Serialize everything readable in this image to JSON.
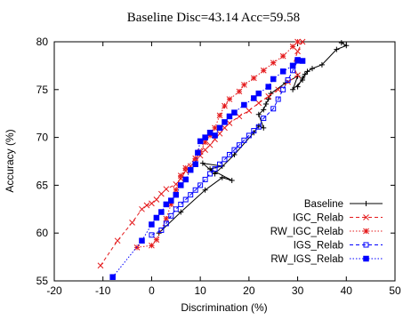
{
  "chart_data": {
    "type": "scatter",
    "title": "Baseline Disc=43.14 Acc=59.58",
    "xlabel": "Discrimination (%)",
    "ylabel": "Accuracy (%)",
    "xlim": [
      -20,
      50
    ],
    "ylim": [
      55,
      80
    ],
    "xticks": [
      -20,
      -10,
      0,
      10,
      20,
      30,
      40,
      50
    ],
    "yticks": [
      55,
      60,
      65,
      70,
      75,
      80
    ],
    "grid": false,
    "legend_position": "bottom-right",
    "series": [
      {
        "name": "Baseline",
        "color": "#000000",
        "style": "solid",
        "marker": "plus",
        "points": [
          [
            1.5,
            60.0
          ],
          [
            6,
            62.2
          ],
          [
            11,
            64.5
          ],
          [
            14.5,
            65.8
          ],
          [
            16.5,
            65.5
          ],
          [
            12,
            66.7
          ],
          [
            14.5,
            67.0
          ],
          [
            10.5,
            67.3
          ],
          [
            13,
            66.2
          ],
          [
            17,
            68.2
          ],
          [
            21,
            70.5
          ],
          [
            22,
            71.2
          ],
          [
            23,
            71.0
          ],
          [
            22,
            72.4
          ],
          [
            23,
            72.9
          ],
          [
            23.5,
            73.5
          ],
          [
            24,
            74.0
          ],
          [
            24.5,
            74.6
          ],
          [
            27.5,
            75.7
          ],
          [
            30,
            76.4
          ],
          [
            29,
            75.0
          ],
          [
            31,
            76.0
          ],
          [
            31.5,
            76.6
          ],
          [
            30,
            75.3
          ],
          [
            31,
            76.2
          ],
          [
            32,
            76.9
          ],
          [
            33,
            77.2
          ],
          [
            35,
            77.6
          ],
          [
            38,
            79.2
          ],
          [
            40,
            79.6
          ],
          [
            39,
            79.9
          ]
        ]
      },
      {
        "name": "IGC_Relab",
        "color": "#e41a1c",
        "style": "dashed",
        "marker": "cross",
        "points": [
          [
            -10.5,
            56.6
          ],
          [
            -7,
            59.2
          ],
          [
            -4,
            61.1
          ],
          [
            -2,
            62.5
          ],
          [
            -1,
            62.9
          ],
          [
            0,
            63.1
          ],
          [
            1,
            63.5
          ],
          [
            2,
            64.1
          ],
          [
            3,
            64.6
          ],
          [
            5,
            65.1
          ],
          [
            6,
            65.7
          ],
          [
            7,
            66.5
          ],
          [
            8,
            67.0
          ],
          [
            9,
            67.5
          ],
          [
            10,
            68.1
          ],
          [
            11,
            68.7
          ],
          [
            12,
            69.2
          ],
          [
            13,
            69.8
          ],
          [
            14,
            70.4
          ],
          [
            15,
            71.0
          ],
          [
            16,
            71.5
          ],
          [
            18,
            72.2
          ],
          [
            20,
            72.8
          ],
          [
            22,
            73.6
          ],
          [
            24,
            74.3
          ],
          [
            26,
            75.0
          ],
          [
            28,
            75.8
          ],
          [
            30,
            76.5
          ],
          [
            29,
            77.5
          ],
          [
            30,
            79.0
          ],
          [
            31,
            80.0
          ]
        ]
      },
      {
        "name": "RW_IGC_Relab",
        "color": "#e41a1c",
        "style": "dotted",
        "marker": "star",
        "points": [
          [
            -3,
            58.5
          ],
          [
            0,
            58.7
          ],
          [
            1,
            59.3
          ],
          [
            3,
            61.5
          ],
          [
            4,
            63.0
          ],
          [
            5,
            64.5
          ],
          [
            6,
            66.0
          ],
          [
            7,
            66.8
          ],
          [
            9,
            67.8
          ],
          [
            10,
            68.5
          ],
          [
            11,
            69.5
          ],
          [
            12,
            70.2
          ],
          [
            13,
            71.0
          ],
          [
            14,
            72.3
          ],
          [
            15,
            73.3
          ],
          [
            16,
            74.0
          ],
          [
            18,
            74.8
          ],
          [
            19,
            75.5
          ],
          [
            21,
            76.2
          ],
          [
            23,
            77.0
          ],
          [
            25,
            77.8
          ],
          [
            27,
            78.5
          ],
          [
            29,
            79.5
          ],
          [
            30,
            80.0
          ]
        ]
      },
      {
        "name": "IGS_Relab",
        "color": "#0000ff",
        "style": "dashed",
        "marker": "open-square",
        "points": [
          [
            0,
            59.8
          ],
          [
            2,
            60.3
          ],
          [
            3,
            61.0
          ],
          [
            4,
            61.8
          ],
          [
            5,
            62.5
          ],
          [
            6,
            63.0
          ],
          [
            7,
            63.5
          ],
          [
            8,
            64.0
          ],
          [
            9,
            64.5
          ],
          [
            10,
            65.0
          ],
          [
            11,
            65.6
          ],
          [
            12,
            66.2
          ],
          [
            13,
            66.7
          ],
          [
            14,
            67.2
          ],
          [
            15,
            67.7
          ],
          [
            16,
            68.2
          ],
          [
            17,
            68.7
          ],
          [
            18,
            69.2
          ],
          [
            19,
            69.7
          ],
          [
            20,
            70.2
          ],
          [
            21,
            70.7
          ],
          [
            22,
            71.1
          ],
          [
            23,
            72.0
          ],
          [
            25,
            73.0
          ],
          [
            26,
            74.0
          ],
          [
            27,
            75.0
          ],
          [
            28,
            76.0
          ],
          [
            29,
            77.0
          ],
          [
            30,
            78.0
          ],
          [
            31,
            78.0
          ]
        ]
      },
      {
        "name": "RW_IGS_Relab",
        "color": "#0000ff",
        "style": "dotted",
        "marker": "filled-square",
        "points": [
          [
            -8,
            55.4
          ],
          [
            -2,
            59.2
          ],
          [
            0,
            60.9
          ],
          [
            1,
            61.6
          ],
          [
            2,
            62.2
          ],
          [
            3,
            63.0
          ],
          [
            4,
            63.4
          ],
          [
            5,
            64.0
          ],
          [
            6,
            65.0
          ],
          [
            7,
            65.6
          ],
          [
            8,
            66.6
          ],
          [
            9,
            67.2
          ],
          [
            9.5,
            68.4
          ],
          [
            10,
            69.6
          ],
          [
            11,
            70.0
          ],
          [
            12,
            70.5
          ],
          [
            13,
            70.2
          ],
          [
            14,
            71.0
          ],
          [
            15,
            71.6
          ],
          [
            16,
            72.2
          ],
          [
            17,
            72.6
          ],
          [
            19,
            73.4
          ],
          [
            21,
            74.1
          ],
          [
            22,
            74.6
          ],
          [
            24,
            75.3
          ],
          [
            25,
            76.1
          ],
          [
            27,
            76.9
          ],
          [
            29,
            77.5
          ],
          [
            30,
            78.1
          ],
          [
            31,
            78.0
          ]
        ]
      }
    ]
  }
}
